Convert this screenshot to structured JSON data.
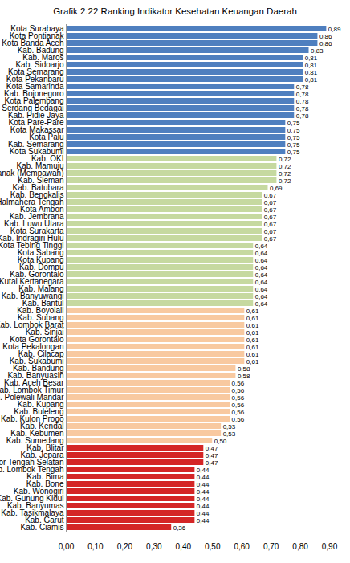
{
  "chart_data": {
    "type": "bar",
    "title": "Grafik 2.22 Ranking Indikator Kesehatan Keuangan Daerah",
    "orientation": "horizontal",
    "data_labels": true,
    "grid": false,
    "categories": [
      "Kota Surabaya",
      "Kota Pontianak",
      "Kota Banda Aceh",
      "Kab. Badung",
      "Kab. Maros",
      "Kab. Sidoarjo",
      "Kota Semarang",
      "Kota Pekanbaru",
      "Kota Samarinda",
      "Kab. Bojonegoro",
      "Kota Palembang",
      "Kab. Serdang Bedagai",
      "Kab. Pidie Jaya",
      "Kota Pare-Pare",
      "Kota Makassar",
      "Kota Palu",
      "Kab. Semarang",
      "Kota Sukabumi",
      "Kab. OKI",
      "Kab. Mamuju",
      "Kab. Pontianak (Mempawah)",
      "Kab. Sleman",
      "Kab. Batubara",
      "Kab. Bengkalis",
      "Kab. Halmahera Tengah",
      "Kota Ambon",
      "Kab. Jembrana",
      "Kab. Luwu Utara",
      "Kota Surakarta",
      "Kab. Indragiri Hulu",
      "Kota Tebing Tinggi",
      "Kota Sabang",
      "Kota Kupang",
      "Kab. Dompu",
      "Kab. Gorontalo",
      "Kab. Kutai Kertanegara",
      "Kab. Malang",
      "Kab. Banyuwangi",
      "Kab. Bantul",
      "Kab. Boyolali",
      "Kab. Subang",
      "Kab. Lombok Barat",
      "Kab. Sinjai",
      "Kota Gorontalo",
      "Kota Pekalongan",
      "Kab. Cilacap",
      "Kab. Sukabumi",
      "Kab. Bandung",
      "Kab. Banyuasin",
      "Kab. Aceh Besar",
      "Kab. Lombok Timur",
      "Kab. Polewali Mandar",
      "Kab. Kupang",
      "Kab. Buleleng",
      "Kab. Kulon Progo",
      "Kab. Kendal",
      "Kab. Kebumen",
      "Kab. Sumedang",
      "Kab. Blitar",
      "Kab. Jepara",
      "Kab. Timor Tengah Selatan",
      "Kab. Lombok Tengah",
      "Kab. Bima",
      "Kab. Bone",
      "Kab. Wonogiri",
      "Kab. Gunung Kidul",
      "Kab. Banyumas",
      "Kab. Tasikmalaya",
      "Kab. Garut",
      "Kab. Ciamis"
    ],
    "values": [
      0.89,
      0.86,
      0.86,
      0.83,
      0.81,
      0.81,
      0.81,
      0.81,
      0.78,
      0.78,
      0.78,
      0.78,
      0.78,
      0.75,
      0.75,
      0.75,
      0.75,
      0.75,
      0.72,
      0.72,
      0.72,
      0.72,
      0.69,
      0.67,
      0.67,
      0.67,
      0.67,
      0.67,
      0.67,
      0.67,
      0.64,
      0.64,
      0.64,
      0.64,
      0.64,
      0.64,
      0.64,
      0.64,
      0.64,
      0.61,
      0.61,
      0.61,
      0.61,
      0.61,
      0.61,
      0.61,
      0.61,
      0.58,
      0.58,
      0.56,
      0.56,
      0.56,
      0.56,
      0.56,
      0.56,
      0.53,
      0.53,
      0.5,
      0.47,
      0.47,
      0.47,
      0.44,
      0.44,
      0.44,
      0.44,
      0.44,
      0.44,
      0.44,
      0.44,
      0.36
    ],
    "value_labels": [
      "0,89",
      "0,86",
      "0,86",
      "0,83",
      "0,81",
      "0,81",
      "0,81",
      "0,81",
      "0,78",
      "0,78",
      "0,78",
      "0,78",
      "0,78",
      "0,75",
      "0,75",
      "0,75",
      "0,75",
      "0,75",
      "0,72",
      "0,72",
      "0,72",
      "0,72",
      "0,69",
      "0,67",
      "0,67",
      "0,67",
      "0,67",
      "0,67",
      "0,67",
      "0,67",
      "0,64",
      "0,64",
      "0,64",
      "0,64",
      "0,64",
      "0,64",
      "0,64",
      "0,64",
      "0,64",
      "0,61",
      "0,61",
      "0,61",
      "0,61",
      "0,61",
      "0,61",
      "0,61",
      "0,61",
      "0,58",
      "0,58",
      "0,56",
      "0,56",
      "0,56",
      "0,56",
      "0,56",
      "0,56",
      "0,53",
      "0,53",
      "0,50",
      "0,47",
      "0,47",
      "0,47",
      "0,44",
      "0,44",
      "0,44",
      "0,44",
      "0,44",
      "0,44",
      "0,44",
      "0,44",
      "0,36"
    ],
    "colors": [
      "#4f7fbf",
      "#4f7fbf",
      "#4f7fbf",
      "#4f7fbf",
      "#4f7fbf",
      "#4f7fbf",
      "#4f7fbf",
      "#4f7fbf",
      "#4f7fbf",
      "#4f7fbf",
      "#4f7fbf",
      "#4f7fbf",
      "#4f7fbf",
      "#4f7fbf",
      "#4f7fbf",
      "#4f7fbf",
      "#4f7fbf",
      "#4f7fbf",
      "#c6d9a0",
      "#c6d9a0",
      "#c6d9a0",
      "#c6d9a0",
      "#c6d9a0",
      "#c6d9a0",
      "#c6d9a0",
      "#c6d9a0",
      "#c6d9a0",
      "#c6d9a0",
      "#c6d9a0",
      "#c6d9a0",
      "#c6d9a0",
      "#c6d9a0",
      "#c6d9a0",
      "#c6d9a0",
      "#c6d9a0",
      "#c6d9a0",
      "#c6d9a0",
      "#c6d9a0",
      "#c6d9a0",
      "#f8c9a0",
      "#f8c9a0",
      "#f8c9a0",
      "#f8c9a0",
      "#f8c9a0",
      "#f8c9a0",
      "#f8c9a0",
      "#f8c9a0",
      "#f8c9a0",
      "#f8c9a0",
      "#f8c9a0",
      "#f8c9a0",
      "#f8c9a0",
      "#f8c9a0",
      "#f8c9a0",
      "#f8c9a0",
      "#f8c9a0",
      "#f8c9a0",
      "#f8c9a0",
      "#d42626",
      "#d42626",
      "#d42626",
      "#d42626",
      "#d42626",
      "#d42626",
      "#d42626",
      "#d42626",
      "#d42626",
      "#d42626",
      "#d42626",
      "#d42626"
    ],
    "xlim": [
      0,
      0.9
    ],
    "xticks": [
      {
        "value": 0,
        "label": "0,00"
      },
      {
        "value": 0.1,
        "label": "0,10"
      },
      {
        "value": 0.2,
        "label": "0,20"
      },
      {
        "value": 0.3,
        "label": "0,30"
      },
      {
        "value": 0.4,
        "label": "0,40"
      },
      {
        "value": 0.5,
        "label": "0,50"
      },
      {
        "value": 0.6,
        "label": "0,60"
      },
      {
        "value": 0.7,
        "label": "0,70"
      },
      {
        "value": 0.8,
        "label": "0,80"
      },
      {
        "value": 0.9,
        "label": "0,90"
      }
    ]
  }
}
